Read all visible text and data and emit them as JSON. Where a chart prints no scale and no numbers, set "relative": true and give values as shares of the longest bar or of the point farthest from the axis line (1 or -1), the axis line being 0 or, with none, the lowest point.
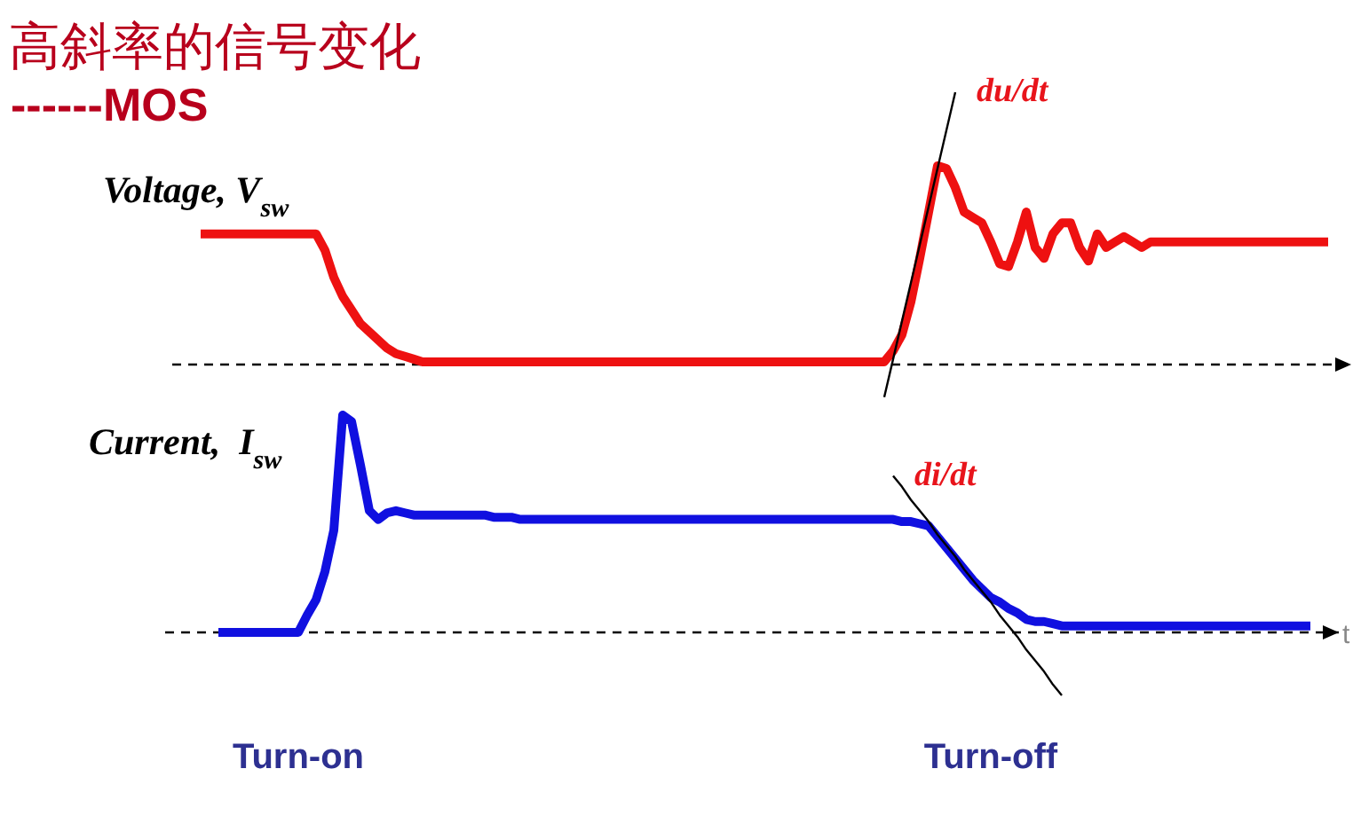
{
  "chart_data": [
    {
      "type": "line",
      "title": "高斜率的信号变化",
      "subtitle": "------MOS",
      "ylabel": "Voltage, V$_{sw}$",
      "relative": true,
      "ref_lines": [
        {
          "axis": "y",
          "value": 0,
          "line_style": "dashed",
          "color": "#000000"
        }
      ],
      "categories": [
        null,
        null,
        null,
        null,
        null,
        null,
        null,
        null,
        null,
        null,
        null,
        null,
        null,
        null,
        null,
        null,
        null,
        null,
        null,
        null,
        null,
        null,
        null,
        null,
        null,
        null,
        null,
        null,
        null,
        null,
        null,
        null,
        null,
        null,
        null,
        null,
        null,
        null,
        null,
        null,
        null,
        null,
        null,
        null,
        null,
        null,
        null,
        null,
        null,
        null,
        null,
        null,
        null,
        null,
        null,
        null,
        null,
        null,
        null,
        null,
        null,
        null,
        null,
        null,
        null,
        null,
        null,
        null,
        null,
        null,
        null,
        null,
        null,
        null,
        null,
        null,
        null,
        null,
        null,
        null,
        null,
        null,
        null,
        null,
        null,
        null,
        null,
        null,
        null,
        null,
        null,
        null,
        null,
        null,
        null,
        null,
        null,
        null,
        null,
        null,
        null,
        null,
        null,
        null,
        null,
        null,
        null,
        null,
        null,
        null,
        null,
        null,
        null,
        null,
        null,
        null,
        null,
        null,
        null,
        null,
        null,
        null,
        null,
        null,
        null,
        null,
        null,
        null
      ],
      "series": [
        {
          "color": "#ee1111",
          "values": [
            0.48,
            0.48,
            0.48,
            0.48,
            0.48,
            0.48,
            0.48,
            0.48,
            0.48,
            0.48,
            0.48,
            0.48,
            0.48,
            0.48,
            0.42,
            0.32,
            0.25,
            0.2,
            0.15,
            0.12,
            0.09,
            0.06,
            0.04,
            0.03,
            0.02,
            0.01,
            0.01,
            0.01,
            0.01,
            0.01,
            0.01,
            0.01,
            0.01,
            0.01,
            0.01,
            0.01,
            0.01,
            0.01,
            0.01,
            0.01,
            0.01,
            0.01,
            0.01,
            0.01,
            0.01,
            0.01,
            0.01,
            0.01,
            0.01,
            0.01,
            0.01,
            0.01,
            0.01,
            0.01,
            0.01,
            0.01,
            0.01,
            0.01,
            0.01,
            0.01,
            0.01,
            0.01,
            0.01,
            0.01,
            0.01,
            0.01,
            0.01,
            0.01,
            0.01,
            0.01,
            0.01,
            0.01,
            0.01,
            0.01,
            0.01,
            0.01,
            0.01,
            0.01,
            0.05,
            0.11,
            0.23,
            0.39,
            0.56,
            0.73,
            0.72,
            0.65,
            0.56,
            0.54,
            0.52,
            0.45,
            0.37,
            0.36,
            0.45,
            0.56,
            0.43,
            0.39,
            0.48,
            0.52,
            0.52,
            0.43,
            0.38,
            0.48,
            0.43,
            0.45,
            0.47,
            0.45,
            0.43,
            0.45,
            0.45,
            0.45,
            0.45,
            0.45,
            0.45,
            0.45,
            0.45,
            0.45,
            0.45,
            0.45,
            0.45,
            0.45,
            0.45,
            0.45,
            0.45,
            0.45,
            0.45,
            0.45,
            0.45,
            0.45
          ]
        },
        {
          "name": "du/dt",
          "type": "line",
          "color": "#000000",
          "values": [
            null,
            null,
            null,
            null,
            null,
            null,
            null,
            null,
            null,
            null,
            null,
            null,
            null,
            null,
            null,
            null,
            null,
            null,
            null,
            null,
            null,
            null,
            null,
            null,
            null,
            null,
            null,
            null,
            null,
            null,
            null,
            null,
            null,
            null,
            null,
            null,
            null,
            null,
            null,
            null,
            null,
            null,
            null,
            null,
            null,
            null,
            null,
            null,
            null,
            null,
            null,
            null,
            null,
            null,
            null,
            null,
            null,
            null,
            null,
            null,
            null,
            null,
            null,
            null,
            null,
            null,
            null,
            null,
            null,
            null,
            null,
            null,
            null,
            null,
            null,
            null,
            null,
            -0.12,
            0.02,
            0.16,
            0.3,
            0.44,
            0.58,
            0.72,
            0.86,
            1.0,
            null,
            null,
            null,
            null,
            null,
            null,
            null,
            null,
            null,
            null,
            null,
            null,
            null,
            null,
            null,
            null,
            null,
            null,
            null,
            null,
            null,
            null,
            null,
            null,
            null,
            null,
            null,
            null,
            null,
            null,
            null,
            null,
            null,
            null,
            null,
            null,
            null,
            null,
            null,
            null,
            null,
            null
          ]
        }
      ]
    },
    {
      "type": "line",
      "ylabel": "Current,  I$_{sw}$",
      "xlabel": "t",
      "relative": true,
      "ref_lines": [
        {
          "axis": "y",
          "value": 0,
          "line_style": "dashed",
          "color": "#000000"
        }
      ],
      "categories": [
        null,
        null,
        null,
        null,
        null,
        null,
        null,
        null,
        null,
        null,
        null,
        "Turn-on",
        null,
        null,
        null,
        null,
        null,
        null,
        null,
        null,
        null,
        null,
        null,
        null,
        null,
        null,
        null,
        null,
        null,
        null,
        null,
        null,
        null,
        null,
        null,
        null,
        null,
        null,
        null,
        null,
        null,
        null,
        null,
        null,
        null,
        null,
        null,
        null,
        null,
        null,
        null,
        null,
        null,
        null,
        null,
        null,
        null,
        null,
        null,
        null,
        null,
        null,
        null,
        null,
        null,
        null,
        null,
        null,
        null,
        null,
        null,
        null,
        null,
        null,
        null,
        null,
        null,
        null,
        null,
        null,
        null,
        null,
        null,
        null,
        null,
        null,
        null,
        null,
        null,
        "Turn-off",
        null,
        null,
        null,
        null,
        null,
        null,
        null,
        null,
        null,
        null,
        null,
        null,
        null,
        null,
        null,
        null,
        null,
        null,
        null,
        null,
        null,
        null,
        null,
        null,
        null,
        null,
        null,
        null,
        null,
        null,
        null,
        null,
        null,
        null,
        null,
        null,
        null,
        null
      ],
      "series": [
        {
          "color": "#1010e0",
          "values": [
            null,
            null,
            0,
            0,
            0,
            0,
            0,
            0,
            0,
            0,
            0,
            0,
            0.08,
            0.15,
            0.28,
            0.47,
            1.0,
            0.97,
            0.77,
            0.56,
            0.52,
            0.55,
            0.56,
            0.55,
            0.54,
            0.54,
            0.54,
            0.54,
            0.54,
            0.54,
            0.54,
            0.54,
            0.54,
            0.53,
            0.53,
            0.53,
            0.52,
            0.52,
            0.52,
            0.52,
            0.52,
            0.52,
            0.52,
            0.52,
            0.52,
            0.52,
            0.52,
            0.52,
            0.52,
            0.52,
            0.52,
            0.52,
            0.52,
            0.52,
            0.52,
            0.52,
            0.52,
            0.52,
            0.52,
            0.52,
            0.52,
            0.52,
            0.52,
            0.52,
            0.52,
            0.52,
            0.52,
            0.52,
            0.52,
            0.52,
            0.52,
            0.52,
            0.52,
            0.52,
            0.52,
            0.52,
            0.52,
            0.52,
            0.52,
            0.51,
            0.51,
            0.5,
            0.49,
            0.44,
            0.39,
            0.34,
            0.29,
            0.24,
            0.2,
            0.16,
            0.14,
            0.11,
            0.09,
            0.06,
            0.05,
            0.05,
            0.04,
            0.03,
            0.03,
            0.03,
            0.03,
            0.03,
            0.03,
            0.03,
            0.03,
            0.03,
            0.03,
            0.03,
            0.03,
            0.03,
            0.03,
            0.03,
            0.03,
            0.03,
            0.03,
            0.03,
            0.03,
            0.03,
            0.03,
            0.03,
            0.03,
            0.03,
            0.03,
            0.03,
            0.03,
            0.03,
            null,
            null
          ]
        },
        {
          "name": "di/dt",
          "type": "line",
          "color": "#000000",
          "values": [
            null,
            null,
            null,
            null,
            null,
            null,
            null,
            null,
            null,
            null,
            null,
            null,
            null,
            null,
            null,
            null,
            null,
            null,
            null,
            null,
            null,
            null,
            null,
            null,
            null,
            null,
            null,
            null,
            null,
            null,
            null,
            null,
            null,
            null,
            null,
            null,
            null,
            null,
            null,
            null,
            null,
            null,
            null,
            null,
            null,
            null,
            null,
            null,
            null,
            null,
            null,
            null,
            null,
            null,
            null,
            null,
            null,
            null,
            null,
            null,
            null,
            null,
            null,
            null,
            null,
            null,
            null,
            null,
            null,
            null,
            null,
            null,
            null,
            null,
            null,
            null,
            null,
            null,
            0.72,
            0.67,
            0.61,
            0.56,
            0.51,
            0.45,
            0.4,
            0.35,
            0.29,
            0.24,
            0.19,
            0.14,
            0.08,
            0.03,
            -0.02,
            -0.08,
            -0.13,
            -0.18,
            -0.24,
            -0.29,
            null,
            null,
            null,
            null,
            null,
            null,
            null,
            null,
            null,
            null,
            null,
            null,
            null,
            null,
            null,
            null,
            null,
            null,
            null,
            null,
            null,
            null,
            null,
            null,
            null,
            null,
            null,
            null,
            null,
            null
          ]
        }
      ]
    }
  ]
}
